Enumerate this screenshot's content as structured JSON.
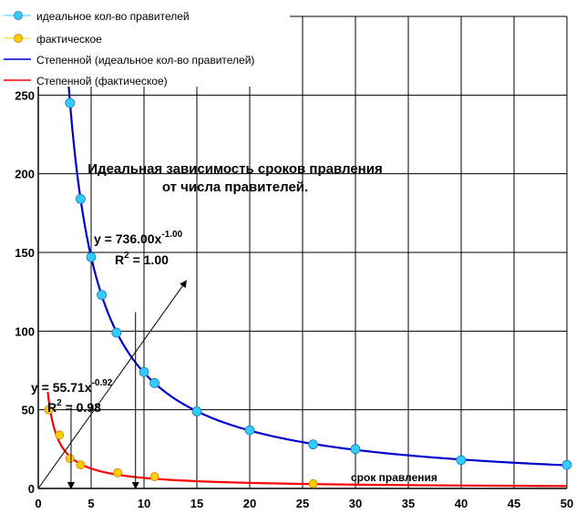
{
  "chart_data": {
    "type": "scatter",
    "title": "Идеальная зависимость сроков правления",
    "title_line2": "от числа правителей.",
    "xlabel": "срок правления",
    "ylabel": "",
    "xlim": [
      0,
      50
    ],
    "ylim": [
      0,
      300
    ],
    "x_ticks": [
      0,
      5,
      10,
      15,
      20,
      25,
      30,
      35,
      40,
      45,
      50
    ],
    "y_ticks": [
      0,
      50,
      100,
      150,
      200,
      250
    ],
    "grid": true,
    "legend_position": "top-left",
    "legend": [
      "идеальное кол-во правителей",
      "фактическое",
      "Степенной (идеальное кол-во правителей)",
      "Степенной (фактическое)"
    ],
    "series": [
      {
        "name": "идеальное кол-во правителей",
        "kind": "points",
        "color": "#33ccff",
        "x": [
          3,
          4,
          5,
          6,
          7.4,
          10,
          11,
          15,
          20,
          26,
          30,
          40,
          50
        ],
        "y": [
          245,
          184,
          147,
          123,
          99,
          74,
          67,
          49,
          37,
          28,
          25,
          18,
          15
        ]
      },
      {
        "name": "фактическое",
        "kind": "points",
        "color": "#ffcc00",
        "x": [
          1,
          2,
          3,
          4,
          7.5,
          11,
          26
        ],
        "y": [
          50,
          34,
          19,
          15,
          10,
          7.5,
          3
        ]
      },
      {
        "name": "Степенной (идеальное кол-во правителей)",
        "kind": "trend",
        "color": "#0000cc",
        "coef": 736.0,
        "exp": -1.0
      },
      {
        "name": "Степенной (фактическое)",
        "kind": "trend",
        "color": "#ff0000",
        "coef": 55.71,
        "exp": -0.92
      }
    ],
    "annotations": {
      "eq_ideal": {
        "base": "y = 736.00x",
        "exp": "-1.00",
        "r2_base": "R",
        "r2_exp": "2",
        "r2_value": " = 1.00"
      },
      "eq_actual": {
        "base": "y = 55.71x",
        "exp": "-0.92",
        "r2_base": "R",
        "r2_exp": "2",
        "r2_value": " = 0.98"
      }
    }
  }
}
